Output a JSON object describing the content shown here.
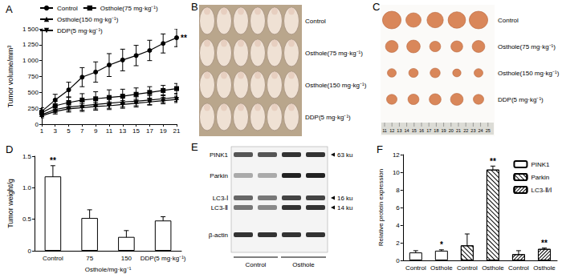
{
  "chart_data": [
    {
      "type": "line",
      "title": "A",
      "x": [
        1,
        3,
        5,
        7,
        9,
        11,
        13,
        15,
        17,
        19,
        21
      ],
      "xlim": [
        1,
        21
      ],
      "xticks": [
        1,
        3,
        5,
        7,
        9,
        11,
        13,
        15,
        17,
        19,
        21
      ],
      "ylim": [
        0,
        1500
      ],
      "yticks": [
        0,
        250,
        500,
        750,
        {
          "value": 1000,
          "label": "1 000"
        },
        {
          "value": 1250,
          "label": "1 250"
        },
        {
          "value": 1500,
          "label": "1 500"
        }
      ],
      "ylabel": "Tumor volume/mm³",
      "grid": false,
      "legend": "top",
      "series": [
        {
          "name": "Control",
          "color": "#000000",
          "marker": "circle",
          "values": [
            200,
            380,
            540,
            740,
            820,
            930,
            1010,
            1080,
            1160,
            1270,
            1360
          ],
          "errors": [
            60,
            90,
            120,
            150,
            160,
            180,
            170,
            160,
            160,
            150,
            140
          ]
        },
        {
          "name": "Osthole(75 mg·kg⁻¹)",
          "color": "#000000",
          "marker": "square",
          "values": [
            180,
            290,
            340,
            380,
            400,
            420,
            440,
            470,
            500,
            530,
            560
          ],
          "errors": [
            40,
            70,
            90,
            100,
            110,
            120,
            110,
            100,
            90,
            80,
            80
          ]
        },
        {
          "name": "Osthole(150 mg·kg⁻¹)",
          "color": "#000000",
          "marker": "triangle",
          "values": [
            150,
            230,
            270,
            290,
            310,
            330,
            350,
            360,
            380,
            400,
            420
          ],
          "errors": [
            30,
            50,
            60,
            70,
            70,
            80,
            80,
            70,
            70,
            60,
            60
          ]
        },
        {
          "name": "DDP(5 mg·kg⁻¹)",
          "color": "#000000",
          "marker": "triangle-down",
          "values": [
            130,
            200,
            240,
            260,
            280,
            290,
            310,
            330,
            350,
            370,
            390
          ],
          "errors": [
            30,
            40,
            50,
            60,
            60,
            60,
            60,
            60,
            50,
            50,
            50
          ]
        }
      ],
      "annotations": [
        {
          "text": "**",
          "series": "Control",
          "index": 10
        }
      ]
    },
    {
      "type": "bar",
      "title": "D",
      "categories": [
        "Control",
        "75",
        "150",
        "DDP(5 mg·kg⁻¹)"
      ],
      "xlabel": "Osthole/mg·kg⁻¹",
      "values": [
        1.18,
        0.52,
        0.22,
        0.48
      ],
      "errors": [
        0.17,
        0.13,
        0.1,
        0.06
      ],
      "color": "#ffffff",
      "ylim": [
        0,
        1.5
      ],
      "yticks": [
        0,
        0.5,
        {
          "value": 1,
          "label": "1.0"
        },
        1.5
      ],
      "ylabel": "Tumor weight/g",
      "grid": false,
      "annotations": [
        {
          "text": "**",
          "index": 0
        }
      ]
    },
    {
      "type": "bar",
      "title": "F",
      "categories": [
        "Control",
        "Osthole",
        "Control",
        "Osthole",
        "Control",
        "Osthole"
      ],
      "ylim": [
        0,
        12
      ],
      "yticks": [
        0,
        2,
        4,
        6,
        8,
        10,
        12
      ],
      "ylabel": "Relative protein expression",
      "grid": false,
      "legend": "top-right",
      "series": [
        {
          "name": "PINK1",
          "color": "#ffffff",
          "values": [
            0.9,
            1.1,
            null,
            null,
            null,
            null
          ],
          "errors": [
            0.2,
            0.1,
            null,
            null,
            null,
            null
          ]
        },
        {
          "name": "Parkin",
          "color": "#ffffff",
          "values": [
            null,
            null,
            1.7,
            10.3,
            null,
            null
          ],
          "errors": [
            null,
            null,
            1.3,
            0.4,
            null,
            null
          ]
        },
        {
          "name": "LC3-Ⅱ/Ⅰ",
          "color": "#ffffff",
          "values": [
            null,
            null,
            null,
            null,
            0.7,
            1.3
          ],
          "errors": [
            null,
            null,
            null,
            null,
            0.4,
            0.1
          ]
        }
      ],
      "annotations": [
        {
          "text": "*",
          "series": "PINK1",
          "index": 1
        },
        {
          "text": "**",
          "series": "Parkin",
          "index": 3
        },
        {
          "text": "**",
          "series": "LC3-Ⅱ/Ⅰ",
          "index": 5
        }
      ]
    }
  ],
  "images": [
    {
      "title": "B",
      "type": "photo",
      "labels": [
        "Control",
        "Osthole(75 mg·kg⁻¹)",
        "Osthole(150 mg·kg⁻¹)",
        "DDP(5 mg·kg⁻¹)"
      ]
    },
    {
      "title": "C",
      "type": "photo",
      "labels": [
        "Control",
        "Osthole(75 mg·kg⁻¹)",
        "Osthole(150 mg·kg⁻¹)",
        "DDP(5 mg·kg⁻¹)"
      ],
      "ruler": [
        11,
        12,
        13,
        14,
        15,
        16,
        17,
        18,
        19,
        20,
        21,
        22,
        23,
        24,
        25
      ]
    },
    {
      "title": "E",
      "type": "western blot",
      "rows": [
        {
          "label": "PINK1",
          "size": "63 ku"
        },
        {
          "label": "Parkin"
        },
        {
          "label": "LC3-Ⅰ",
          "size": "16 ku"
        },
        {
          "label": "LC3-Ⅱ",
          "size": "14 ku"
        },
        {
          "label": "β-actin"
        }
      ],
      "groups": [
        "Control",
        "Osthole"
      ]
    }
  ]
}
